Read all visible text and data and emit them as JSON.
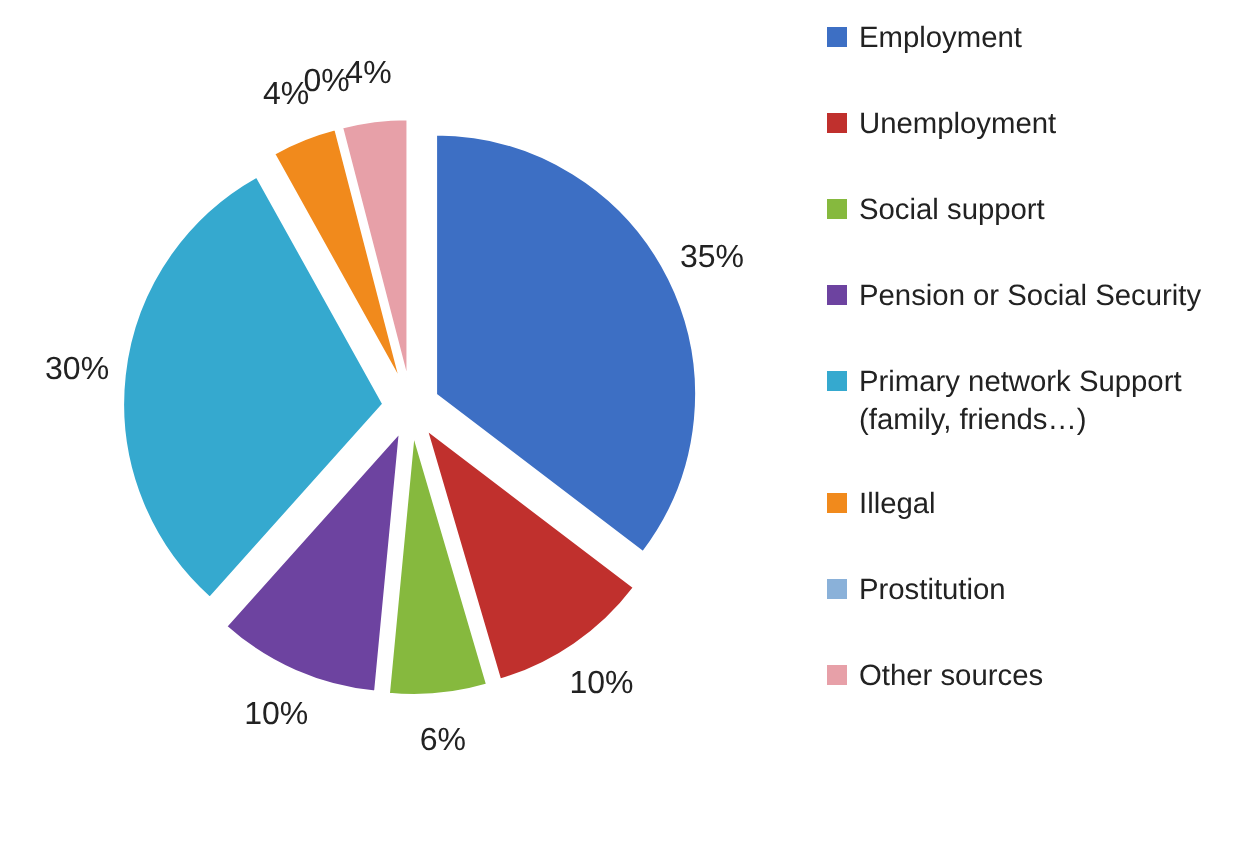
{
  "chart_data": {
    "type": "pie",
    "categories": [
      "Employment",
      "Unemployment",
      "Social support",
      "Pension or Social Security",
      "Primary network Support (family, friends…)",
      "Illegal",
      "Prostitution",
      "Other sources"
    ],
    "values": [
      35,
      10,
      6,
      10,
      30,
      4,
      0,
      4
    ],
    "value_labels": [
      "35%",
      "10%",
      "6%",
      "10%",
      "30%",
      "4%",
      "0%",
      "4%"
    ],
    "colors": [
      "#3d6fc4",
      "#c0302d",
      "#86b93e",
      "#6d43a0",
      "#35a9cf",
      "#f18a1c",
      "#8ab1d9",
      "#e7a0a8"
    ],
    "legend": "right"
  }
}
